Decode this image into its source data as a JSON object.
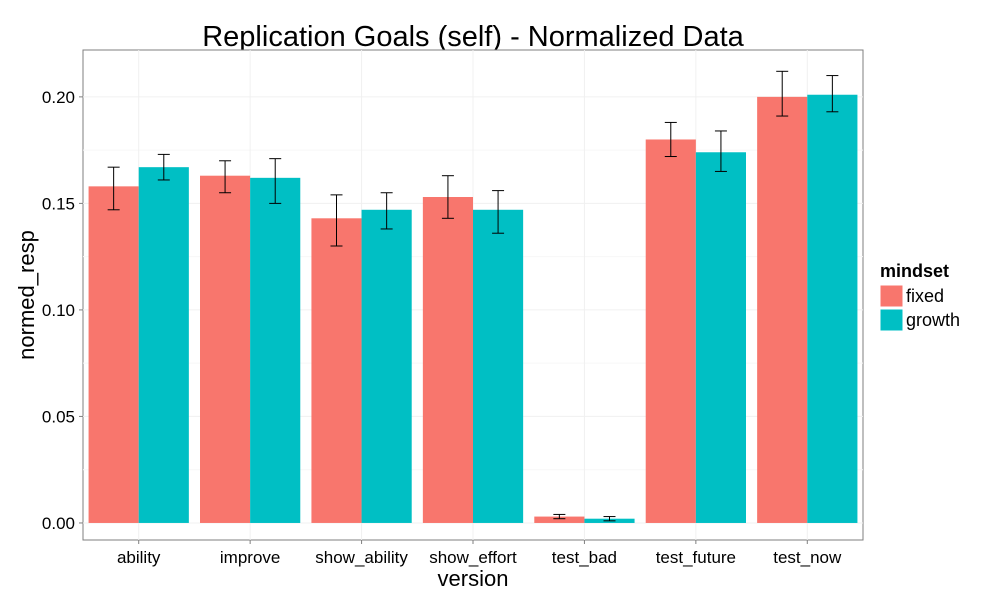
{
  "chart_data": {
    "type": "bar",
    "title": "Replication Goals (self) - Normalized Data",
    "xlabel": "version",
    "ylabel": "normed_resp",
    "ylim": [
      -0.008,
      0.222
    ],
    "yticks": [
      0.0,
      0.05,
      0.1,
      0.15,
      0.2
    ],
    "ytick_labels": [
      "0.00",
      "0.05",
      "0.10",
      "0.15",
      "0.20"
    ],
    "categories": [
      "ability",
      "improve",
      "show_ability",
      "show_effort",
      "test_bad",
      "test_future",
      "test_now"
    ],
    "series": [
      {
        "name": "fixed",
        "color": "#F8766D",
        "values": [
          0.158,
          0.163,
          0.143,
          0.153,
          0.003,
          0.18,
          0.2
        ],
        "err_low": [
          0.147,
          0.155,
          0.13,
          0.143,
          0.002,
          0.172,
          0.191
        ],
        "err_high": [
          0.167,
          0.17,
          0.154,
          0.163,
          0.004,
          0.188,
          0.212
        ]
      },
      {
        "name": "growth",
        "color": "#00BFC4",
        "values": [
          0.167,
          0.162,
          0.147,
          0.147,
          0.002,
          0.174,
          0.201
        ],
        "err_low": [
          0.161,
          0.15,
          0.138,
          0.136,
          0.001,
          0.165,
          0.193
        ],
        "err_high": [
          0.173,
          0.171,
          0.155,
          0.156,
          0.003,
          0.184,
          0.21
        ]
      }
    ],
    "legend": {
      "title": "mindset",
      "placement": "right"
    },
    "grid": true
  }
}
